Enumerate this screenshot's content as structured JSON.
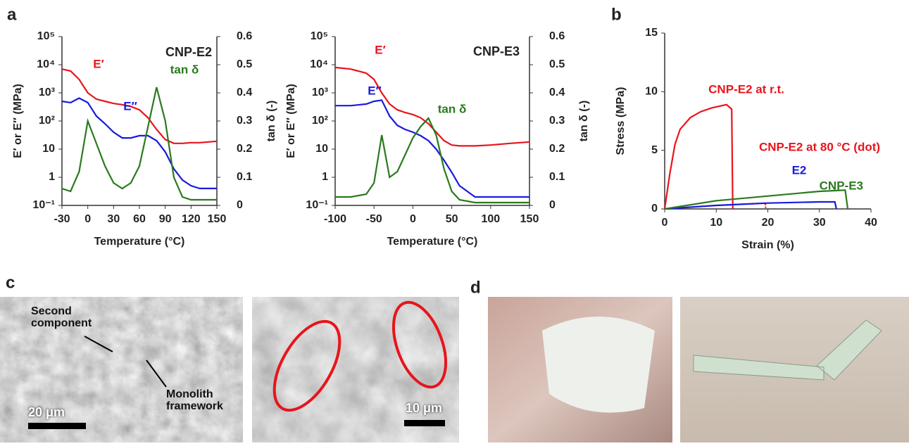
{
  "chart_data": [
    {
      "type": "line",
      "title": "CNP-E2",
      "xlabel": "Temperature (°C)",
      "ylabel": "E′ or E″ (MPa)",
      "y2label": "tan δ (-)",
      "ylog": true,
      "x": [
        -30,
        -20,
        -10,
        0,
        10,
        20,
        30,
        40,
        50,
        60,
        70,
        80,
        90,
        100,
        110,
        120,
        130,
        140,
        150
      ],
      "series": [
        {
          "name": "E′",
          "color": "#e8141b",
          "values": [
            7000,
            6000,
            3000,
            1000,
            600,
            500,
            420,
            380,
            330,
            250,
            130,
            50,
            22,
            16,
            16,
            17,
            17,
            18,
            19
          ]
        },
        {
          "name": "E″",
          "color": "#1a1adc",
          "values": [
            500,
            450,
            650,
            450,
            150,
            80,
            40,
            25,
            25,
            30,
            30,
            20,
            8,
            2,
            0.8,
            0.5,
            0.4,
            0.4,
            0.4
          ]
        },
        {
          "name": "tan δ",
          "color": "#2a7a1e",
          "axis": "y2",
          "values": [
            0.06,
            0.05,
            0.12,
            0.3,
            0.22,
            0.14,
            0.08,
            0.06,
            0.08,
            0.14,
            0.28,
            0.42,
            0.3,
            0.1,
            0.03,
            0.02,
            0.02,
            0.02,
            0.02
          ]
        }
      ],
      "xlim": [
        -30,
        150
      ],
      "xticks": [
        -30,
        0,
        30,
        60,
        90,
        120,
        150
      ],
      "ylim": [
        0.1,
        100000
      ],
      "yticks": [
        {
          "value": 0.1,
          "label": "10⁻¹"
        },
        1,
        10,
        {
          "value": 100,
          "label": "10²"
        },
        {
          "value": 1000,
          "label": "10³"
        },
        {
          "value": 10000,
          "label": "10⁴"
        },
        {
          "value": 100000,
          "label": "10⁵"
        }
      ],
      "y2lim": [
        0,
        0.6
      ],
      "y2ticks": [
        0,
        0.1,
        0.2,
        0.3,
        0.4,
        0.5,
        0.6
      ]
    },
    {
      "type": "line",
      "title": "CNP-E3",
      "xlabel": "Temperature (°C)",
      "ylabel": "E′ or E″ (MPa)",
      "y2label": "tan δ (-)",
      "ylog": true,
      "x": [
        -100,
        -80,
        -60,
        -50,
        -40,
        -30,
        -20,
        -10,
        0,
        10,
        20,
        30,
        40,
        50,
        60,
        80,
        100,
        125,
        150
      ],
      "series": [
        {
          "name": "E′",
          "color": "#e8141b",
          "values": [
            8000,
            7000,
            5000,
            3000,
            1000,
            400,
            250,
            200,
            170,
            130,
            80,
            40,
            20,
            14,
            13,
            13,
            14,
            16,
            18
          ]
        },
        {
          "name": "E″",
          "color": "#1a1adc",
          "values": [
            350,
            350,
            400,
            500,
            550,
            150,
            70,
            50,
            40,
            30,
            20,
            10,
            4,
            1.5,
            0.5,
            0.2,
            0.2,
            0.2,
            0.2
          ]
        },
        {
          "name": "tan δ",
          "color": "#2a7a1e",
          "axis": "y2",
          "values": [
            0.03,
            0.03,
            0.04,
            0.08,
            0.25,
            0.1,
            0.12,
            0.18,
            0.24,
            0.28,
            0.31,
            0.25,
            0.13,
            0.05,
            0.02,
            0.01,
            0.01,
            0.01,
            0.01
          ]
        }
      ],
      "xlim": [
        -100,
        150
      ],
      "xticks": [
        -100,
        -50,
        0,
        50,
        100,
        150
      ],
      "ylim": [
        0.1,
        100000
      ],
      "yticks": [
        {
          "value": 0.1,
          "label": "10⁻¹"
        },
        1,
        10,
        {
          "value": 100,
          "label": "10²"
        },
        {
          "value": 1000,
          "label": "10³"
        },
        {
          "value": 10000,
          "label": "10⁴"
        },
        {
          "value": 100000,
          "label": "10⁵"
        }
      ],
      "y2lim": [
        0,
        0.6
      ],
      "y2ticks": [
        0,
        0.1,
        0.2,
        0.3,
        0.4,
        0.5,
        0.6
      ]
    },
    {
      "type": "line",
      "xlabel": "Strain (%)",
      "ylabel": "Stress (MPa)",
      "series": [
        {
          "name": "CNP-E2 at r.t.",
          "color": "#e8141b",
          "x": [
            0,
            1,
            2,
            3,
            5,
            7,
            9,
            11,
            12,
            13,
            13.2
          ],
          "values": [
            0,
            3,
            5.5,
            6.8,
            7.8,
            8.3,
            8.6,
            8.8,
            8.9,
            8.5,
            0
          ]
        },
        {
          "name": "CNP-E2 at 80 °C (dot)",
          "color": "#e8141b",
          "dashed": true,
          "x": [
            0,
            10,
            19.5,
            19.6
          ],
          "values": [
            0,
            0.3,
            0.5,
            0
          ]
        },
        {
          "name": "E2",
          "color": "#1a1adc",
          "x": [
            0,
            10,
            20,
            30,
            33,
            33.3
          ],
          "values": [
            0,
            0.3,
            0.5,
            0.6,
            0.6,
            0
          ]
        },
        {
          "name": "CNP-E3",
          "color": "#2a7a1e",
          "x": [
            0,
            10,
            20,
            30,
            35,
            35.5
          ],
          "values": [
            0,
            0.7,
            1.1,
            1.5,
            1.6,
            0
          ]
        }
      ],
      "xlim": [
        0,
        40
      ],
      "xticks": [
        0,
        10,
        20,
        30,
        40
      ],
      "ylim": [
        0,
        15
      ],
      "yticks": [
        0,
        5,
        10,
        15
      ]
    }
  ],
  "figure": {
    "panel_labels": [
      "a",
      "b",
      "c",
      "d"
    ],
    "sem_left": {
      "labels": [
        "Second component",
        "Monolith framework"
      ],
      "scale_bar": "20 μm"
    },
    "sem_right": {
      "scale_bar": "10 μm"
    }
  }
}
